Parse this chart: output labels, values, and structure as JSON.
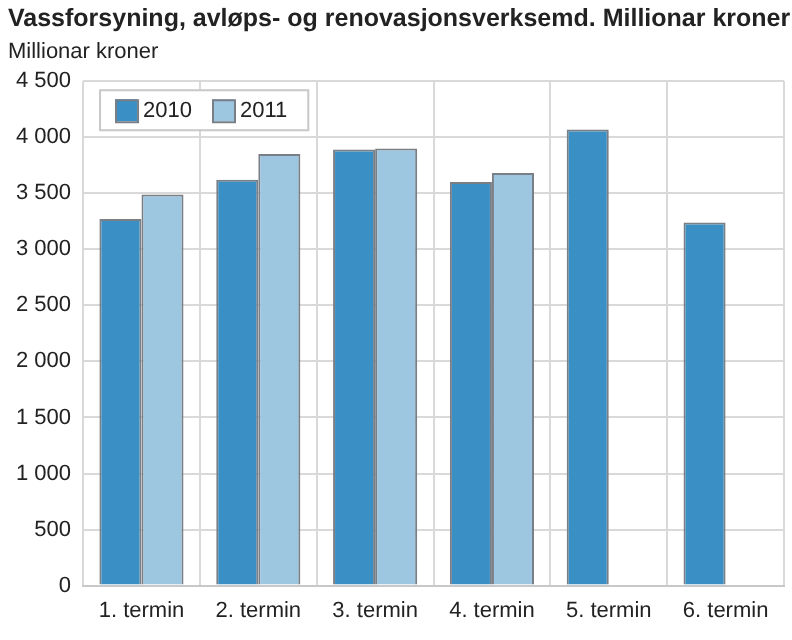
{
  "chart_data": {
    "type": "bar",
    "title": "Vassforsyning, avløps- og renovasjonsverksemd. Millionar kroner",
    "ylabel": "Millionar kroner",
    "categories": [
      "1. termin",
      "2. termin",
      "3. termin",
      "4. termin",
      "5. termin",
      "6. termin"
    ],
    "series": [
      {
        "name": "2010",
        "color": "#3a8fc4",
        "values": [
          3270,
          3620,
          3890,
          3600,
          4070,
          3240
        ]
      },
      {
        "name": "2011",
        "color": "#9dc6e0",
        "values": [
          3490,
          3850,
          3900,
          3680,
          null,
          null
        ]
      }
    ],
    "ylim": [
      0,
      4500
    ],
    "yticks": [
      {
        "value": 0,
        "label": "0"
      },
      {
        "value": 500,
        "label": "500"
      },
      {
        "value": 1000,
        "label": "1 000"
      },
      {
        "value": 1500,
        "label": "1 500"
      },
      {
        "value": 2000,
        "label": "2 000"
      },
      {
        "value": 2500,
        "label": "2 500"
      },
      {
        "value": 3000,
        "label": "3 000"
      },
      {
        "value": 3500,
        "label": "3 500"
      },
      {
        "value": 4000,
        "label": "4 000"
      },
      {
        "value": 4500,
        "label": "4 500"
      }
    ],
    "grid": true,
    "legend": "top left"
  }
}
